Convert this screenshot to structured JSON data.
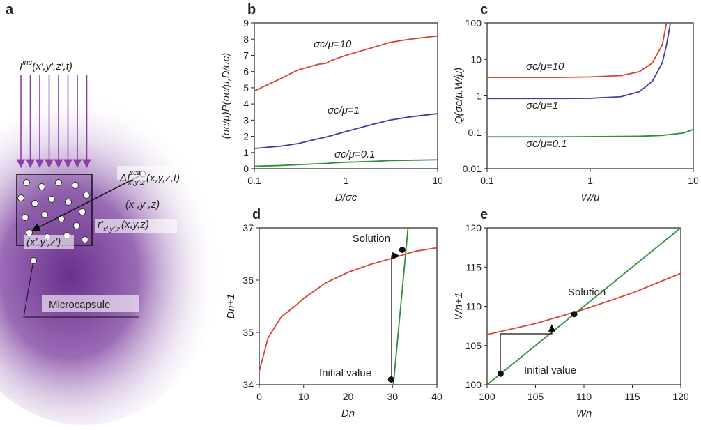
{
  "panel_a": {
    "label": "a",
    "incident": {
      "symbol": "I",
      "sup": "inc",
      "args": "(x′,y′,z′,t)"
    },
    "scattered": {
      "symbol": "ΔI",
      "sup": "sca",
      "sub": "x′,y′,z′",
      "args": "(x,y,z,t)"
    },
    "observer": "(x ,y ,z)",
    "distance": {
      "symbol": "r′",
      "sub": "x′,y′,z′",
      "args": "(x,y,z)"
    },
    "source": "(x′,y′,z′)",
    "microcapsule": "Microcapsule"
  },
  "chart_data": [
    {
      "type": "line",
      "panel": "b",
      "xlabel": "D/σc",
      "ylabel": "(σc/μ)P(σc/μ,D/σc)",
      "xlog": true,
      "xlim": [
        0.1,
        10
      ],
      "ylim": [
        0,
        9
      ],
      "xticks": [
        0.1,
        1,
        10
      ],
      "yticks": [
        0,
        1,
        2,
        3,
        4,
        5,
        6,
        7,
        8,
        9
      ],
      "x": [
        0.1,
        0.2,
        0.3,
        0.5,
        0.6,
        0.7,
        1,
        2,
        3,
        5,
        10
      ],
      "series": [
        {
          "name": "σc/μ=10",
          "color": "#d9432f",
          "values": [
            4.8,
            5.6,
            6.1,
            6.45,
            6.5,
            6.7,
            7.0,
            7.5,
            7.8,
            8.0,
            8.2
          ]
        },
        {
          "name": "σc/μ=1",
          "color": "#3b3fa0",
          "values": [
            1.25,
            1.4,
            1.55,
            1.85,
            1.95,
            2.05,
            2.3,
            2.75,
            3.0,
            3.2,
            3.4
          ]
        },
        {
          "name": "σc/μ=0.1",
          "color": "#2e8b3a",
          "values": [
            0.15,
            0.2,
            0.25,
            0.3,
            0.32,
            0.35,
            0.4,
            0.45,
            0.5,
            0.52,
            0.55
          ]
        }
      ]
    },
    {
      "type": "line",
      "panel": "c",
      "xlabel": "W/μ",
      "ylabel": "Q(σc/μ,W/μ)",
      "xlog": true,
      "ylog": true,
      "xlim": [
        0.1,
        10
      ],
      "ylim": [
        0.01,
        100
      ],
      "xticks": [
        0.1,
        1,
        10
      ],
      "yticks": [
        0.01,
        0.1,
        1,
        10,
        100
      ],
      "x": [
        0.1,
        0.5,
        1,
        2,
        3,
        4,
        5,
        5.5,
        6,
        8,
        10
      ],
      "series": [
        {
          "name": "σc/μ=10",
          "color": "#d9432f",
          "values": [
            3.2,
            3.2,
            3.3,
            3.6,
            4.6,
            8,
            25,
            100,
            null,
            null,
            null
          ]
        },
        {
          "name": "σc/μ=1",
          "color": "#3b3fa0",
          "values": [
            0.85,
            0.85,
            0.86,
            0.95,
            1.3,
            2.5,
            8,
            25,
            100,
            null,
            null
          ]
        },
        {
          "name": "σc/μ=0.1",
          "color": "#2e8b3a",
          "values": [
            0.075,
            0.075,
            0.076,
            0.077,
            0.078,
            0.08,
            0.082,
            0.085,
            0.087,
            0.095,
            0.12
          ]
        }
      ]
    },
    {
      "type": "line",
      "panel": "d",
      "xlabel": "Dn",
      "ylabel": "Dn+1",
      "xlim": [
        0,
        40
      ],
      "ylim": [
        34,
        37
      ],
      "xticks": [
        0,
        10,
        20,
        30,
        40
      ],
      "yticks": [
        34,
        35,
        36,
        37
      ],
      "series": [
        {
          "color": "#d9432f",
          "x": [
            0,
            2,
            5,
            8,
            10,
            15,
            20,
            25,
            30,
            35,
            40
          ],
          "values": [
            34.25,
            34.9,
            35.3,
            35.5,
            35.65,
            35.95,
            36.15,
            36.3,
            36.42,
            36.55,
            36.62
          ]
        },
        {
          "color": "#2e8b3a",
          "x": [
            30.2,
            33.5
          ],
          "values": [
            34,
            37
          ]
        }
      ],
      "points": {
        "x": [
          29.7,
          32.2
        ],
        "y": [
          34.1,
          36.58
        ]
      },
      "annotations": [
        "Initial value",
        "Solution"
      ]
    },
    {
      "type": "line",
      "panel": "e",
      "xlabel": "Wn",
      "ylabel": "Wn+1",
      "xlim": [
        100,
        120
      ],
      "ylim": [
        100,
        120
      ],
      "xticks": [
        100,
        105,
        110,
        115,
        120
      ],
      "yticks": [
        100,
        105,
        110,
        115,
        120
      ],
      "series": [
        {
          "color": "#d9432f",
          "x": [
            100,
            105,
            110,
            115,
            120
          ],
          "values": [
            106.4,
            107.8,
            109.6,
            111.7,
            114.2
          ]
        },
        {
          "color": "#2e8b3a",
          "x": [
            100,
            120
          ],
          "values": [
            100,
            120
          ]
        }
      ],
      "points": {
        "x": [
          101.4,
          109
        ],
        "y": [
          101.4,
          109
        ]
      },
      "annotations": [
        "Initial value",
        "Solution"
      ]
    }
  ]
}
